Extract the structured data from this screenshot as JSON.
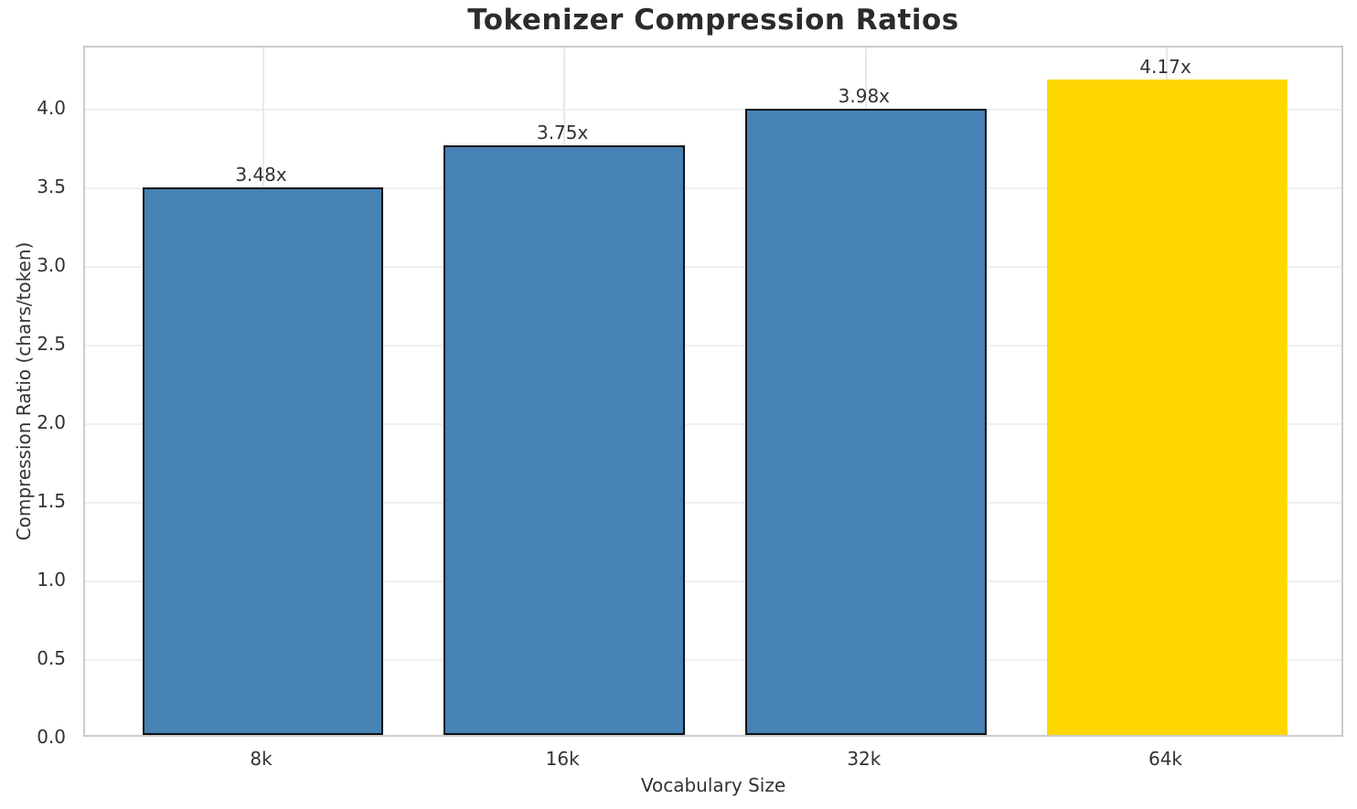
{
  "chart_data": {
    "type": "bar",
    "title": "Tokenizer Compression Ratios",
    "xlabel": "Vocabulary Size",
    "ylabel": "Compression Ratio (chars/token)",
    "categories": [
      "8k",
      "16k",
      "32k",
      "64k"
    ],
    "values": [
      3.48,
      3.75,
      3.98,
      4.17
    ],
    "bar_labels": [
      "3.48x",
      "3.75x",
      "3.98x",
      "4.17x"
    ],
    "bar_colors": [
      "#4682B4",
      "#4682B4",
      "#4682B4",
      "#FFD700"
    ],
    "bar_edge_colors": [
      "#111111",
      "#111111",
      "#111111",
      "none"
    ],
    "highlight_color": "#FFD700",
    "base_color": "#4682B4",
    "ylim": [
      0.0,
      4.4
    ],
    "yticks": [
      0.0,
      0.5,
      1.0,
      1.5,
      2.0,
      2.5,
      3.0,
      3.5,
      4.0
    ],
    "ytick_labels": [
      "0.0",
      "0.5",
      "1.0",
      "1.5",
      "2.0",
      "2.5",
      "3.0",
      "3.5",
      "4.0"
    ],
    "grid": true,
    "grid_axis": "both",
    "legend": "none"
  }
}
